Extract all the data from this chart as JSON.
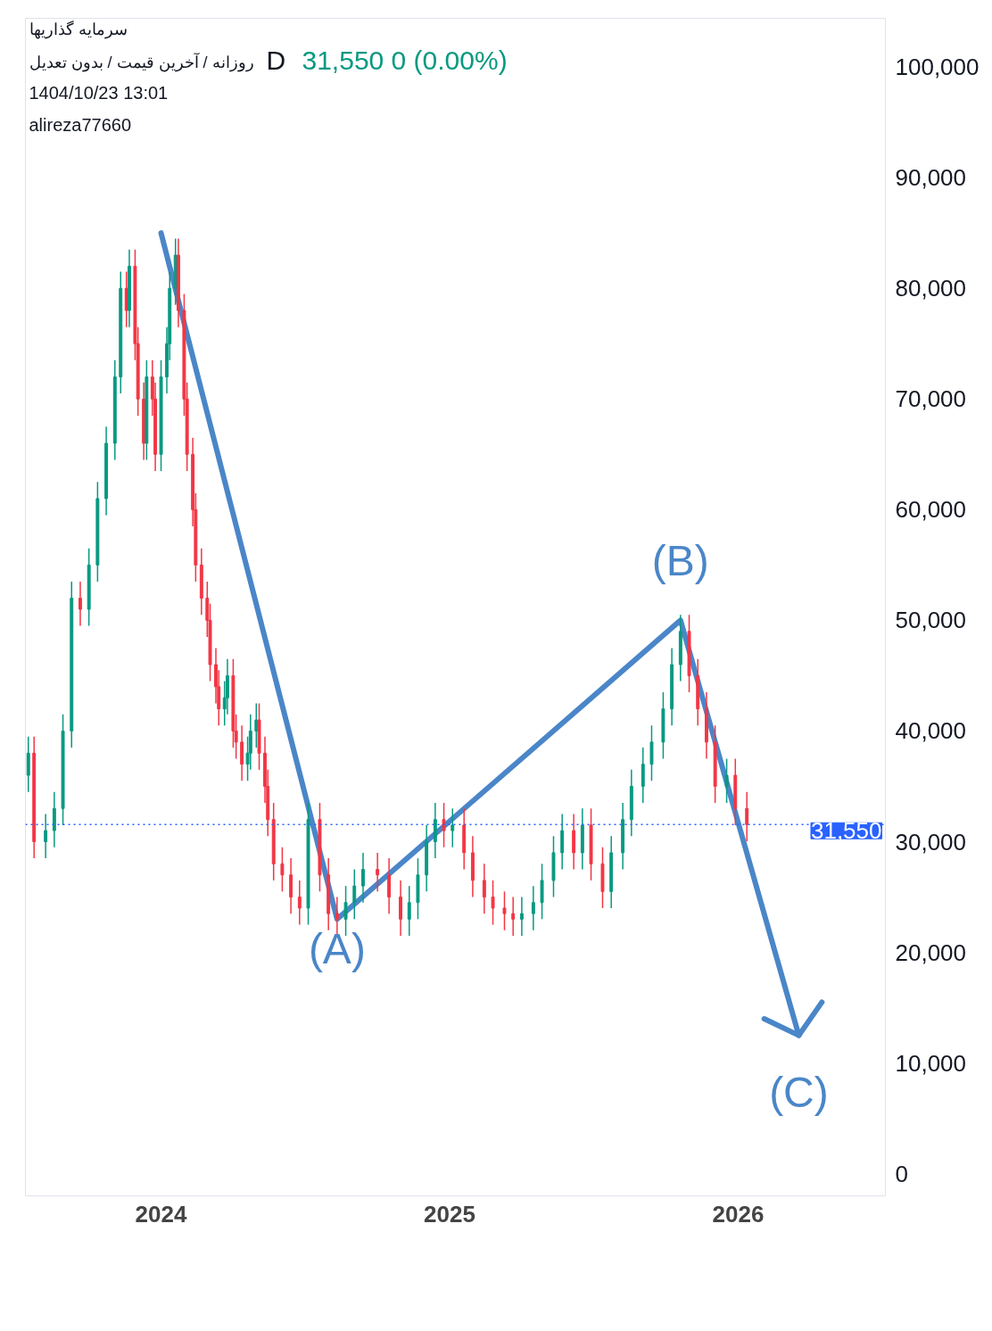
{
  "chart_data": {
    "type": "candlestick",
    "title": "D",
    "subtitle": "31,550  0 (0.00%)",
    "annotations": [
      "سرمایه گذاریها",
      "روزانه / آخرین قیمت / بدون تعدیل",
      "1404/10/23 13:01",
      "alireza77660",
      "(A)",
      "(B)",
      "(C)"
    ],
    "x": [
      2023.54,
      2023.56,
      2023.6,
      2023.63,
      2023.66,
      2023.69,
      2023.72,
      2023.75,
      2023.78,
      2023.81,
      2023.84,
      2023.86,
      2023.88,
      2023.89,
      2023.91,
      2023.92,
      2023.94,
      2023.95,
      2023.97,
      2023.98,
      2024.0,
      2024.02,
      2024.03,
      2024.05,
      2024.06,
      2024.08,
      2024.09,
      2024.11,
      2024.12,
      2024.14,
      2024.16,
      2024.17,
      2024.19,
      2024.2,
      2024.22,
      2024.23,
      2024.25,
      2024.26,
      2024.28,
      2024.3,
      2024.31,
      2024.33,
      2024.34,
      2024.36,
      2024.37,
      2024.39,
      2024.42,
      2024.45,
      2024.48,
      2024.51,
      2024.55,
      2024.58,
      2024.61,
      2024.64,
      2024.67,
      2024.7,
      2024.75,
      2024.79,
      2024.83,
      2024.86,
      2024.89,
      2024.92,
      2024.95,
      2024.98,
      2025.01,
      2025.05,
      2025.08,
      2025.12,
      2025.15,
      2025.19,
      2025.22,
      2025.25,
      2025.29,
      2025.32,
      2025.36,
      2025.39,
      2025.43,
      2025.46,
      2025.49,
      2025.53,
      2025.56,
      2025.6,
      2025.63,
      2025.67,
      2025.7,
      2025.74,
      2025.77,
      2025.8,
      2025.83,
      2025.86,
      2025.89,
      2025.92,
      2025.96,
      2025.99,
      2026.03
    ],
    "ohlc": [
      [
        36000,
        39500,
        34500,
        38000
      ],
      [
        38000,
        39500,
        28500,
        30000
      ],
      [
        30000,
        32500,
        28500,
        31000
      ],
      [
        31000,
        34500,
        29500,
        33000
      ],
      [
        33000,
        41500,
        31500,
        40000
      ],
      [
        40000,
        53500,
        38500,
        52000
      ],
      [
        52000,
        53500,
        49500,
        51000
      ],
      [
        51000,
        56500,
        49500,
        55000
      ],
      [
        55000,
        62500,
        53500,
        61000
      ],
      [
        61000,
        67500,
        59500,
        66000
      ],
      [
        66000,
        73500,
        64500,
        72000
      ],
      [
        72000,
        81500,
        70500,
        80000
      ],
      [
        80000,
        81500,
        76500,
        78000
      ],
      [
        78000,
        83500,
        76500,
        82000
      ],
      [
        82000,
        83500,
        73500,
        75000
      ],
      [
        75000,
        76500,
        68500,
        70000
      ],
      [
        70000,
        71500,
        64500,
        66000
      ],
      [
        66000,
        73500,
        64500,
        72000
      ],
      [
        72000,
        73500,
        68500,
        70000
      ],
      [
        70000,
        71500,
        63500,
        65000
      ],
      [
        65000,
        73500,
        63500,
        72000
      ],
      [
        72000,
        76500,
        70500,
        75000
      ],
      [
        75000,
        81500,
        73500,
        80000
      ],
      [
        80000,
        84500,
        78500,
        83000
      ],
      [
        83000,
        84500,
        76500,
        78000
      ],
      [
        78000,
        79500,
        68500,
        70000
      ],
      [
        70000,
        71500,
        63500,
        65000
      ],
      [
        65000,
        66500,
        58500,
        60000
      ],
      [
        60000,
        61500,
        53500,
        55000
      ],
      [
        55000,
        56500,
        50500,
        52000
      ],
      [
        52000,
        53500,
        48500,
        50000
      ],
      [
        50000,
        51500,
        44500,
        46000
      ],
      [
        46000,
        47500,
        42500,
        44000
      ],
      [
        44000,
        45500,
        40500,
        42000
      ],
      [
        42000,
        44500,
        40500,
        43000
      ],
      [
        43000,
        46500,
        41500,
        45000
      ],
      [
        45000,
        46500,
        38500,
        40000
      ],
      [
        40000,
        41500,
        37500,
        39000
      ],
      [
        39000,
        40500,
        35500,
        37000
      ],
      [
        37000,
        39500,
        35500,
        38000
      ],
      [
        38000,
        41500,
        36500,
        40000
      ],
      [
        40000,
        42500,
        38500,
        41000
      ],
      [
        41000,
        42500,
        36500,
        38000
      ],
      [
        38000,
        39500,
        33500,
        35000
      ],
      [
        35000,
        36500,
        30500,
        32000
      ],
      [
        32000,
        33500,
        26500,
        28000
      ],
      [
        28000,
        29500,
        25500,
        27000
      ],
      [
        27000,
        28500,
        23500,
        25000
      ],
      [
        25000,
        26500,
        22500,
        24000
      ],
      [
        24000,
        33500,
        22500,
        32000
      ],
      [
        32000,
        33500,
        25500,
        27000
      ],
      [
        27000,
        28500,
        22000,
        23500
      ],
      [
        23500,
        25000,
        21500,
        23000
      ],
      [
        23000,
        26000,
        21500,
        24500
      ],
      [
        24500,
        27500,
        23000,
        26000
      ],
      [
        26000,
        29000,
        24500,
        27500
      ],
      [
        27500,
        29000,
        25500,
        27000
      ],
      [
        27000,
        28500,
        23500,
        25000
      ],
      [
        25000,
        26500,
        21500,
        23000
      ],
      [
        23000,
        26000,
        21500,
        24500
      ],
      [
        24500,
        28500,
        23000,
        27000
      ],
      [
        27000,
        31500,
        25500,
        30000
      ],
      [
        30000,
        33500,
        28500,
        32000
      ],
      [
        32000,
        33500,
        29500,
        31000
      ],
      [
        31000,
        33000,
        29500,
        31500
      ],
      [
        31500,
        33000,
        27500,
        29000
      ],
      [
        29000,
        30500,
        25000,
        26500
      ],
      [
        26500,
        28000,
        23500,
        25000
      ],
      [
        25000,
        26500,
        22500,
        24000
      ],
      [
        24000,
        25500,
        22000,
        23500
      ],
      [
        23500,
        25000,
        21500,
        23000
      ],
      [
        23000,
        25000,
        21500,
        23500
      ],
      [
        23500,
        26000,
        22000,
        24500
      ],
      [
        24500,
        28000,
        23000,
        26500
      ],
      [
        26500,
        30500,
        25000,
        29000
      ],
      [
        29000,
        32500,
        27500,
        31000
      ],
      [
        31000,
        32500,
        27500,
        29000
      ],
      [
        29000,
        33000,
        27500,
        31500
      ],
      [
        31500,
        33000,
        26500,
        28000
      ],
      [
        28000,
        29500,
        24000,
        25500
      ],
      [
        25500,
        30500,
        24000,
        29000
      ],
      [
        29000,
        33500,
        27500,
        32000
      ],
      [
        32000,
        36500,
        30500,
        35000
      ],
      [
        35000,
        38500,
        33500,
        37000
      ],
      [
        37000,
        40500,
        35500,
        39000
      ],
      [
        39000,
        43500,
        37500,
        42000
      ],
      [
        42000,
        47500,
        40500,
        46000
      ],
      [
        46000,
        50500,
        44500,
        49000
      ],
      [
        49000,
        50500,
        43500,
        45000
      ],
      [
        45000,
        46500,
        40500,
        42000
      ],
      [
        42000,
        43500,
        37500,
        39000
      ],
      [
        39000,
        40500,
        33500,
        35000
      ],
      [
        35000,
        37500,
        33500,
        36000
      ],
      [
        36000,
        37500,
        31500,
        33000
      ],
      [
        33000,
        34500,
        30050,
        31550
      ]
    ],
    "series": [
      {
        "type": "line",
        "color": "#4a86c8",
        "x": [
          2024.0,
          2024.61,
          2025.8,
          2026.21
        ],
        "values": [
          85000,
          23000,
          50000,
          12500
        ]
      },
      {
        "type": "line",
        "color": "#4a86c8",
        "x": [
          2026.09,
          2026.21,
          2026.29
        ],
        "values": [
          14000,
          12500,
          15500
        ]
      }
    ],
    "colors": [
      "#089981",
      "#f23645",
      "#089981",
      "#089981",
      "#089981",
      "#089981",
      "#f23645",
      "#089981",
      "#089981",
      "#089981",
      "#089981",
      "#089981",
      "#f23645",
      "#089981",
      "#f23645",
      "#f23645",
      "#f23645",
      "#089981",
      "#f23645",
      "#f23645",
      "#089981",
      "#089981",
      "#089981",
      "#089981",
      "#f23645",
      "#f23645",
      "#f23645",
      "#f23645",
      "#f23645",
      "#f23645",
      "#f23645",
      "#f23645",
      "#f23645",
      "#f23645",
      "#089981",
      "#089981",
      "#f23645",
      "#f23645",
      "#f23645",
      "#089981",
      "#089981",
      "#089981",
      "#f23645",
      "#f23645",
      "#f23645",
      "#f23645",
      "#f23645",
      "#f23645",
      "#f23645",
      "#089981",
      "#f23645",
      "#f23645",
      "#f23645",
      "#089981",
      "#089981",
      "#089981",
      "#f23645",
      "#f23645",
      "#f23645",
      "#089981",
      "#089981",
      "#089981",
      "#089981",
      "#f23645",
      "#089981",
      "#f23645",
      "#f23645",
      "#f23645",
      "#f23645",
      "#f23645",
      "#f23645",
      "#089981",
      "#089981",
      "#089981",
      "#089981",
      "#089981",
      "#f23645",
      "#089981",
      "#f23645",
      "#f23645",
      "#089981",
      "#089981",
      "#089981",
      "#089981",
      "#089981",
      "#089981",
      "#089981",
      "#089981",
      "#f23645",
      "#f23645",
      "#f23645",
      "#f23645",
      "#089981",
      "#f23645",
      "#f23645"
    ],
    "xlim": [
      2023.53,
      2026.51
    ],
    "xticks": [
      2024,
      2025,
      2026
    ],
    "ylim": [
      -2000,
      104400
    ],
    "yticks": [
      0,
      {
        "value": 10000,
        "label": "10,000"
      },
      {
        "value": 20000,
        "label": "20,000"
      },
      {
        "value": 30000,
        "label": "30,000"
      },
      {
        "value": 40000,
        "label": "40,000"
      },
      {
        "value": 50000,
        "label": "50,000"
      },
      {
        "value": 60000,
        "label": "60,000"
      },
      {
        "value": 70000,
        "label": "70,000"
      },
      {
        "value": 80000,
        "label": "80,000"
      },
      {
        "value": 90000,
        "label": "90,000"
      },
      {
        "value": 100000,
        "label": "100,000"
      }
    ],
    "ref_lines": [
      {
        "axis": "y",
        "value": 31550,
        "label": "31,550",
        "color": "#2962ff",
        "line_style": "dotted"
      }
    ],
    "grid": false
  }
}
